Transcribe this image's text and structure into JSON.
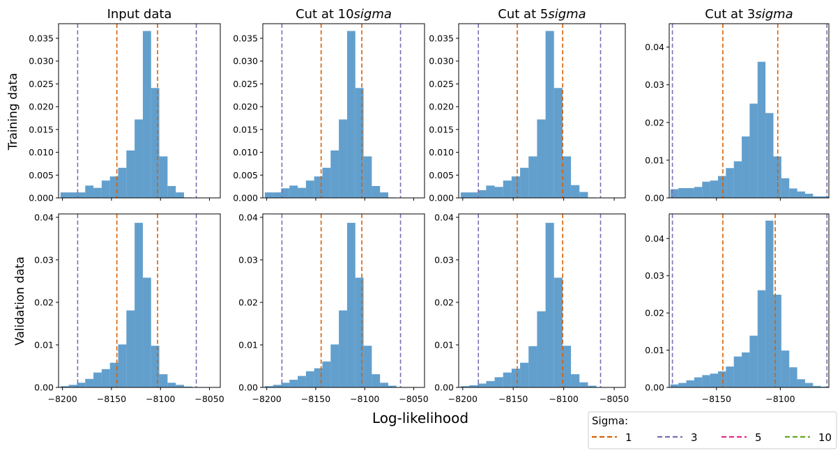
{
  "figure": {
    "row_labels": [
      "Training data",
      "Validation data"
    ],
    "column_titles": [
      "Input data",
      "Cut at 10",
      "Cut at 5",
      "Cut at 3"
    ],
    "title_suffix": "sigma",
    "xlabel": "Log-likelihood",
    "legend": {
      "title": "Sigma:",
      "entries": [
        {
          "label": "1",
          "color": "#d95f02"
        },
        {
          "label": "3",
          "color": "#7570b3"
        },
        {
          "label": "5",
          "color": "#e7298a"
        },
        {
          "label": "10",
          "color": "#66a61e"
        }
      ]
    },
    "bar_color": "#3b87c1"
  },
  "chart_data": [
    {
      "type": "bar",
      "row": "Training data",
      "col": "Input data",
      "xlim": [
        -8204,
        -8039
      ],
      "ylim": [
        0,
        0.0382
      ],
      "xticks": [
        -8200,
        -8150,
        -8100,
        -8050
      ],
      "yticks": [
        0,
        0.005,
        0.01,
        0.015,
        0.02,
        0.025,
        0.03,
        0.035
      ],
      "ytick_labels": [
        "0.000",
        "0.005",
        "0.010",
        "0.015",
        "0.020",
        "0.025",
        "0.030",
        "0.035"
      ],
      "show_xticklabels": false,
      "bin_edges": [
        -8202,
        -8193.6,
        -8185.2,
        -8176.8,
        -8168.4,
        -8160,
        -8151.6,
        -8143.2,
        -8134.8,
        -8126.4,
        -8118,
        -8109.6,
        -8101.2,
        -8092.8,
        -8084.4,
        -8076,
        -8067.6
      ],
      "values": [
        0.0012,
        0.0012,
        0.0012,
        0.0027,
        0.0022,
        0.0038,
        0.0047,
        0.0066,
        0.0104,
        0.0172,
        0.0366,
        0.0241,
        0.0091,
        0.0026,
        0.0012,
        0.0001
      ],
      "vlines": [
        {
          "x": -8144.5,
          "color": "#d95f02"
        },
        {
          "x": -8103.0,
          "color": "#d95f02"
        },
        {
          "x": -8184.5,
          "color": "#7570b3"
        },
        {
          "x": -8063.5,
          "color": "#7570b3"
        }
      ]
    },
    {
      "type": "bar",
      "row": "Training data",
      "col": "Cut at 10sigma",
      "xlim": [
        -8204,
        -8039
      ],
      "ylim": [
        0,
        0.0382
      ],
      "xticks": [
        -8200,
        -8150,
        -8100,
        -8050
      ],
      "yticks": [
        0,
        0.005,
        0.01,
        0.015,
        0.02,
        0.025,
        0.03,
        0.035
      ],
      "ytick_labels": [
        "0.000",
        "0.005",
        "0.010",
        "0.015",
        "0.020",
        "0.025",
        "0.030",
        "0.035"
      ],
      "show_xticklabels": false,
      "bin_edges": [
        -8202,
        -8193.6,
        -8185.2,
        -8176.8,
        -8168.4,
        -8160,
        -8151.6,
        -8143.2,
        -8134.8,
        -8126.4,
        -8118,
        -8109.6,
        -8101.2,
        -8092.8,
        -8084.4,
        -8076,
        -8067.6
      ],
      "values": [
        0.0012,
        0.0012,
        0.0021,
        0.0027,
        0.0022,
        0.0038,
        0.0047,
        0.0066,
        0.0104,
        0.0172,
        0.0366,
        0.0241,
        0.0091,
        0.0026,
        0.0012,
        0.0001
      ],
      "vlines": [
        {
          "x": -8144.5,
          "color": "#d95f02"
        },
        {
          "x": -8103.0,
          "color": "#d95f02"
        },
        {
          "x": -8184.5,
          "color": "#7570b3"
        },
        {
          "x": -8063.5,
          "color": "#7570b3"
        }
      ]
    },
    {
      "type": "bar",
      "row": "Training data",
      "col": "Cut at 5sigma",
      "xlim": [
        -8204,
        -8039
      ],
      "ylim": [
        0,
        0.0382
      ],
      "xticks": [
        -8200,
        -8150,
        -8100,
        -8050
      ],
      "yticks": [
        0,
        0.005,
        0.01,
        0.015,
        0.02,
        0.025,
        0.03,
        0.035
      ],
      "ytick_labels": [
        "0.000",
        "0.005",
        "0.010",
        "0.015",
        "0.020",
        "0.025",
        "0.030",
        "0.035"
      ],
      "show_xticklabels": false,
      "bin_edges": [
        -8202,
        -8193.6,
        -8185.2,
        -8176.8,
        -8168.4,
        -8160,
        -8151.6,
        -8143.2,
        -8134.8,
        -8126.4,
        -8118,
        -8109.6,
        -8101.2,
        -8092.8,
        -8084.4,
        -8076,
        -8067.6
      ],
      "values": [
        0.0012,
        0.0012,
        0.0017,
        0.0027,
        0.0024,
        0.0038,
        0.0047,
        0.0066,
        0.0091,
        0.0172,
        0.0366,
        0.0241,
        0.0091,
        0.0028,
        0.0013,
        0.0001
      ],
      "vlines": [
        {
          "x": -8146.0,
          "color": "#d95f02"
        },
        {
          "x": -8101.0,
          "color": "#d95f02"
        },
        {
          "x": -8184.5,
          "color": "#7570b3"
        },
        {
          "x": -8063.5,
          "color": "#7570b3"
        }
      ]
    },
    {
      "type": "bar",
      "row": "Training data",
      "col": "Cut at 3sigma",
      "xlim": [
        -8187,
        -8062
      ],
      "ylim": [
        0,
        0.0462
      ],
      "xticks": [
        -8150,
        -8100
      ],
      "yticks": [
        0,
        0.01,
        0.02,
        0.03,
        0.04
      ],
      "ytick_labels": [
        "0.00",
        "0.01",
        "0.02",
        "0.03",
        "0.04"
      ],
      "show_xticklabels": false,
      "bin_edges": [
        -8186,
        -8179.8,
        -8173.6,
        -8167.4,
        -8161.2,
        -8155,
        -8148.8,
        -8142.6,
        -8136.4,
        -8130.2,
        -8124,
        -8117.8,
        -8111.6,
        -8105.4,
        -8099.2,
        -8093,
        -8086.8,
        -8080.6,
        -8074.4,
        -8068.2,
        -8062
      ],
      "values": [
        0.0023,
        0.0026,
        0.0026,
        0.0029,
        0.0043,
        0.0046,
        0.0058,
        0.0079,
        0.0097,
        0.0163,
        0.025,
        0.0361,
        0.0225,
        0.011,
        0.0052,
        0.0025,
        0.0017,
        0.0011,
        0.0004,
        0.0004
      ],
      "vlines": [
        {
          "x": -8145.0,
          "color": "#d95f02"
        },
        {
          "x": -8102.0,
          "color": "#d95f02"
        },
        {
          "x": -8184.5,
          "color": "#7570b3"
        },
        {
          "x": -8063.5,
          "color": "#7570b3"
        }
      ]
    },
    {
      "type": "bar",
      "row": "Validation data",
      "col": "Input data",
      "xlim": [
        -8204,
        -8039
      ],
      "ylim": [
        0,
        0.0408
      ],
      "xticks": [
        -8200,
        -8150,
        -8100,
        -8050
      ],
      "yticks": [
        0,
        0.01,
        0.02,
        0.03,
        0.04
      ],
      "ytick_labels": [
        "0.00",
        "0.01",
        "0.02",
        "0.03",
        "0.04"
      ],
      "show_xticklabels": true,
      "xtick_labels": [
        "−8200",
        "−8150",
        "−8100",
        "−8050"
      ],
      "bin_edges": [
        -8202,
        -8193.6,
        -8185.2,
        -8176.8,
        -8168.4,
        -8160,
        -8151.6,
        -8143.2,
        -8134.8,
        -8126.4,
        -8118,
        -8109.6,
        -8101.2,
        -8092.8,
        -8084.4,
        -8076,
        -8067.6
      ],
      "values": [
        0.0003,
        0.0006,
        0.0011,
        0.002,
        0.0035,
        0.0043,
        0.0058,
        0.0101,
        0.0181,
        0.0387,
        0.0258,
        0.0098,
        0.0031,
        0.0011,
        0.0006,
        0.0002
      ],
      "vlines": [
        {
          "x": -8144.5,
          "color": "#d95f02"
        },
        {
          "x": -8103.0,
          "color": "#d95f02"
        },
        {
          "x": -8184.5,
          "color": "#7570b3"
        },
        {
          "x": -8063.5,
          "color": "#7570b3"
        }
      ]
    },
    {
      "type": "bar",
      "row": "Validation data",
      "col": "Cut at 10sigma",
      "xlim": [
        -8204,
        -8039
      ],
      "ylim": [
        0,
        0.0408
      ],
      "xticks": [
        -8200,
        -8150,
        -8100,
        -8050
      ],
      "yticks": [
        0,
        0.01,
        0.02,
        0.03,
        0.04
      ],
      "ytick_labels": [
        "0.00",
        "0.01",
        "0.02",
        "0.03",
        "0.04"
      ],
      "show_xticklabels": true,
      "xtick_labels": [
        "−8200",
        "−8150",
        "−8100",
        "−8050"
      ],
      "bin_edges": [
        -8202,
        -8193.6,
        -8185.2,
        -8176.8,
        -8168.4,
        -8160,
        -8151.6,
        -8143.2,
        -8134.8,
        -8126.4,
        -8118,
        -8109.6,
        -8101.2,
        -8092.8,
        -8084.4,
        -8076,
        -8067.6
      ],
      "values": [
        0.0003,
        0.0006,
        0.0011,
        0.0018,
        0.0027,
        0.0038,
        0.0045,
        0.0061,
        0.0101,
        0.0181,
        0.0387,
        0.0258,
        0.0098,
        0.0031,
        0.0011,
        0.0004
      ],
      "vlines": [
        {
          "x": -8144.5,
          "color": "#d95f02"
        },
        {
          "x": -8103.0,
          "color": "#d95f02"
        },
        {
          "x": -8184.5,
          "color": "#7570b3"
        },
        {
          "x": -8063.5,
          "color": "#7570b3"
        }
      ]
    },
    {
      "type": "bar",
      "row": "Validation data",
      "col": "Cut at 5sigma",
      "xlim": [
        -8204,
        -8039
      ],
      "ylim": [
        0,
        0.0408
      ],
      "xticks": [
        -8200,
        -8150,
        -8100,
        -8050
      ],
      "yticks": [
        0,
        0.01,
        0.02,
        0.03,
        0.04
      ],
      "ytick_labels": [
        "0.00",
        "0.01",
        "0.02",
        "0.03",
        "0.04"
      ],
      "show_xticklabels": true,
      "xtick_labels": [
        "−8200",
        "−8150",
        "−8100",
        "−8050"
      ],
      "bin_edges": [
        -8202,
        -8193.6,
        -8185.2,
        -8176.8,
        -8168.4,
        -8160,
        -8151.6,
        -8143.2,
        -8134.8,
        -8126.4,
        -8118,
        -8109.6,
        -8101.2,
        -8092.8,
        -8084.4,
        -8076,
        -8067.6
      ],
      "values": [
        0.0003,
        0.0005,
        0.0009,
        0.0015,
        0.0024,
        0.0035,
        0.0044,
        0.0058,
        0.0097,
        0.0179,
        0.0387,
        0.0258,
        0.0098,
        0.0031,
        0.0012,
        0.0004
      ],
      "vlines": [
        {
          "x": -8146.0,
          "color": "#d95f02"
        },
        {
          "x": -8101.0,
          "color": "#d95f02"
        },
        {
          "x": -8184.5,
          "color": "#7570b3"
        },
        {
          "x": -8063.5,
          "color": "#7570b3"
        }
      ]
    },
    {
      "type": "bar",
      "row": "Validation data",
      "col": "Cut at 3sigma",
      "xlim": [
        -8187,
        -8062
      ],
      "ylim": [
        0,
        0.0466
      ],
      "xticks": [
        -8150,
        -8100
      ],
      "yticks": [
        0,
        0.01,
        0.02,
        0.03,
        0.04
      ],
      "ytick_labels": [
        "0.00",
        "0.01",
        "0.02",
        "0.03",
        "0.04"
      ],
      "show_xticklabels": true,
      "xtick_labels": [
        "−8150",
        "−8100"
      ],
      "bin_edges": [
        -8186,
        -8179.8,
        -8173.6,
        -8167.4,
        -8161.2,
        -8155,
        -8148.8,
        -8142.6,
        -8136.4,
        -8130.2,
        -8124,
        -8117.8,
        -8111.6,
        -8105.4,
        -8099.2,
        -8093,
        -8086.8,
        -8080.6,
        -8074.4,
        -8068.2,
        -8062
      ],
      "values": [
        0.0008,
        0.0012,
        0.0019,
        0.0027,
        0.0033,
        0.0037,
        0.0043,
        0.0056,
        0.0083,
        0.0094,
        0.0139,
        0.0261,
        0.0448,
        0.0249,
        0.0099,
        0.0054,
        0.0022,
        0.0012,
        0.0004,
        0.0002
      ],
      "vlines": [
        {
          "x": -8145.0,
          "color": "#d95f02"
        },
        {
          "x": -8104.0,
          "color": "#d95f02"
        },
        {
          "x": -8184.5,
          "color": "#7570b3"
        },
        {
          "x": -8063.5,
          "color": "#7570b3"
        }
      ]
    }
  ]
}
